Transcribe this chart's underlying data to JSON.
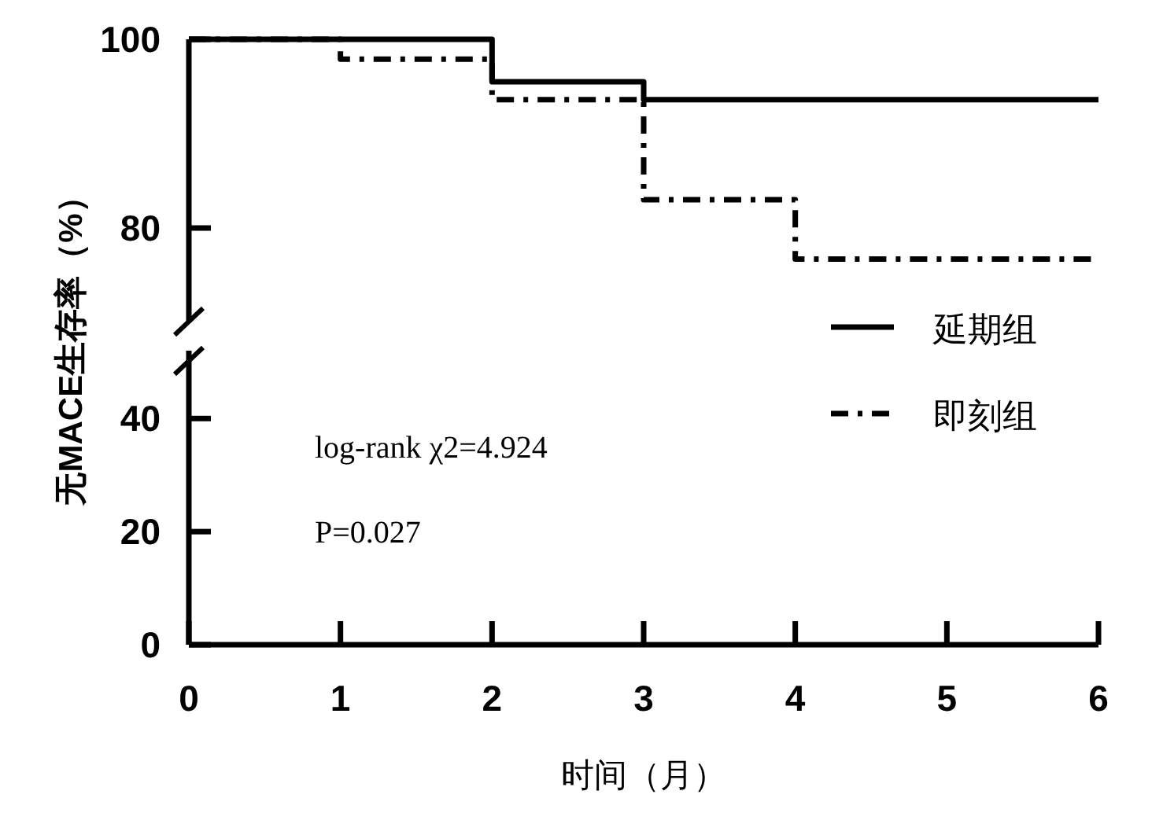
{
  "chart_data": [
    {
      "type": "step",
      "ylabel": "无MACE生存率（%）",
      "xlim": [
        0,
        6
      ],
      "ylim": [
        70,
        100
      ],
      "yticks": [
        80,
        100
      ],
      "tick_labels": "y",
      "legend": "right",
      "series": [
        {
          "name": "延期组",
          "color": "#000000",
          "line_style": "solid",
          "x": [
            0,
            2,
            3,
            6
          ],
          "values": [
            100,
            95.5,
            93.6,
            93.6
          ]
        },
        {
          "name": "即刻组",
          "color": "#000000",
          "line_style": "dashdot",
          "x": [
            0,
            1,
            2,
            3,
            4,
            6
          ],
          "values": [
            100,
            97.9,
            93.6,
            83.0,
            76.7,
            76.7
          ]
        }
      ]
    },
    {
      "type": "step",
      "xlabel": "时间（月）",
      "xlim": [
        0,
        6
      ],
      "xticks": [
        0,
        1,
        2,
        3,
        4,
        5,
        6
      ],
      "ylim": [
        0,
        52
      ],
      "yticks": [
        0,
        20,
        40
      ],
      "annotations": [
        "log-rank χ2=4.924",
        "P=0.027"
      ]
    }
  ]
}
